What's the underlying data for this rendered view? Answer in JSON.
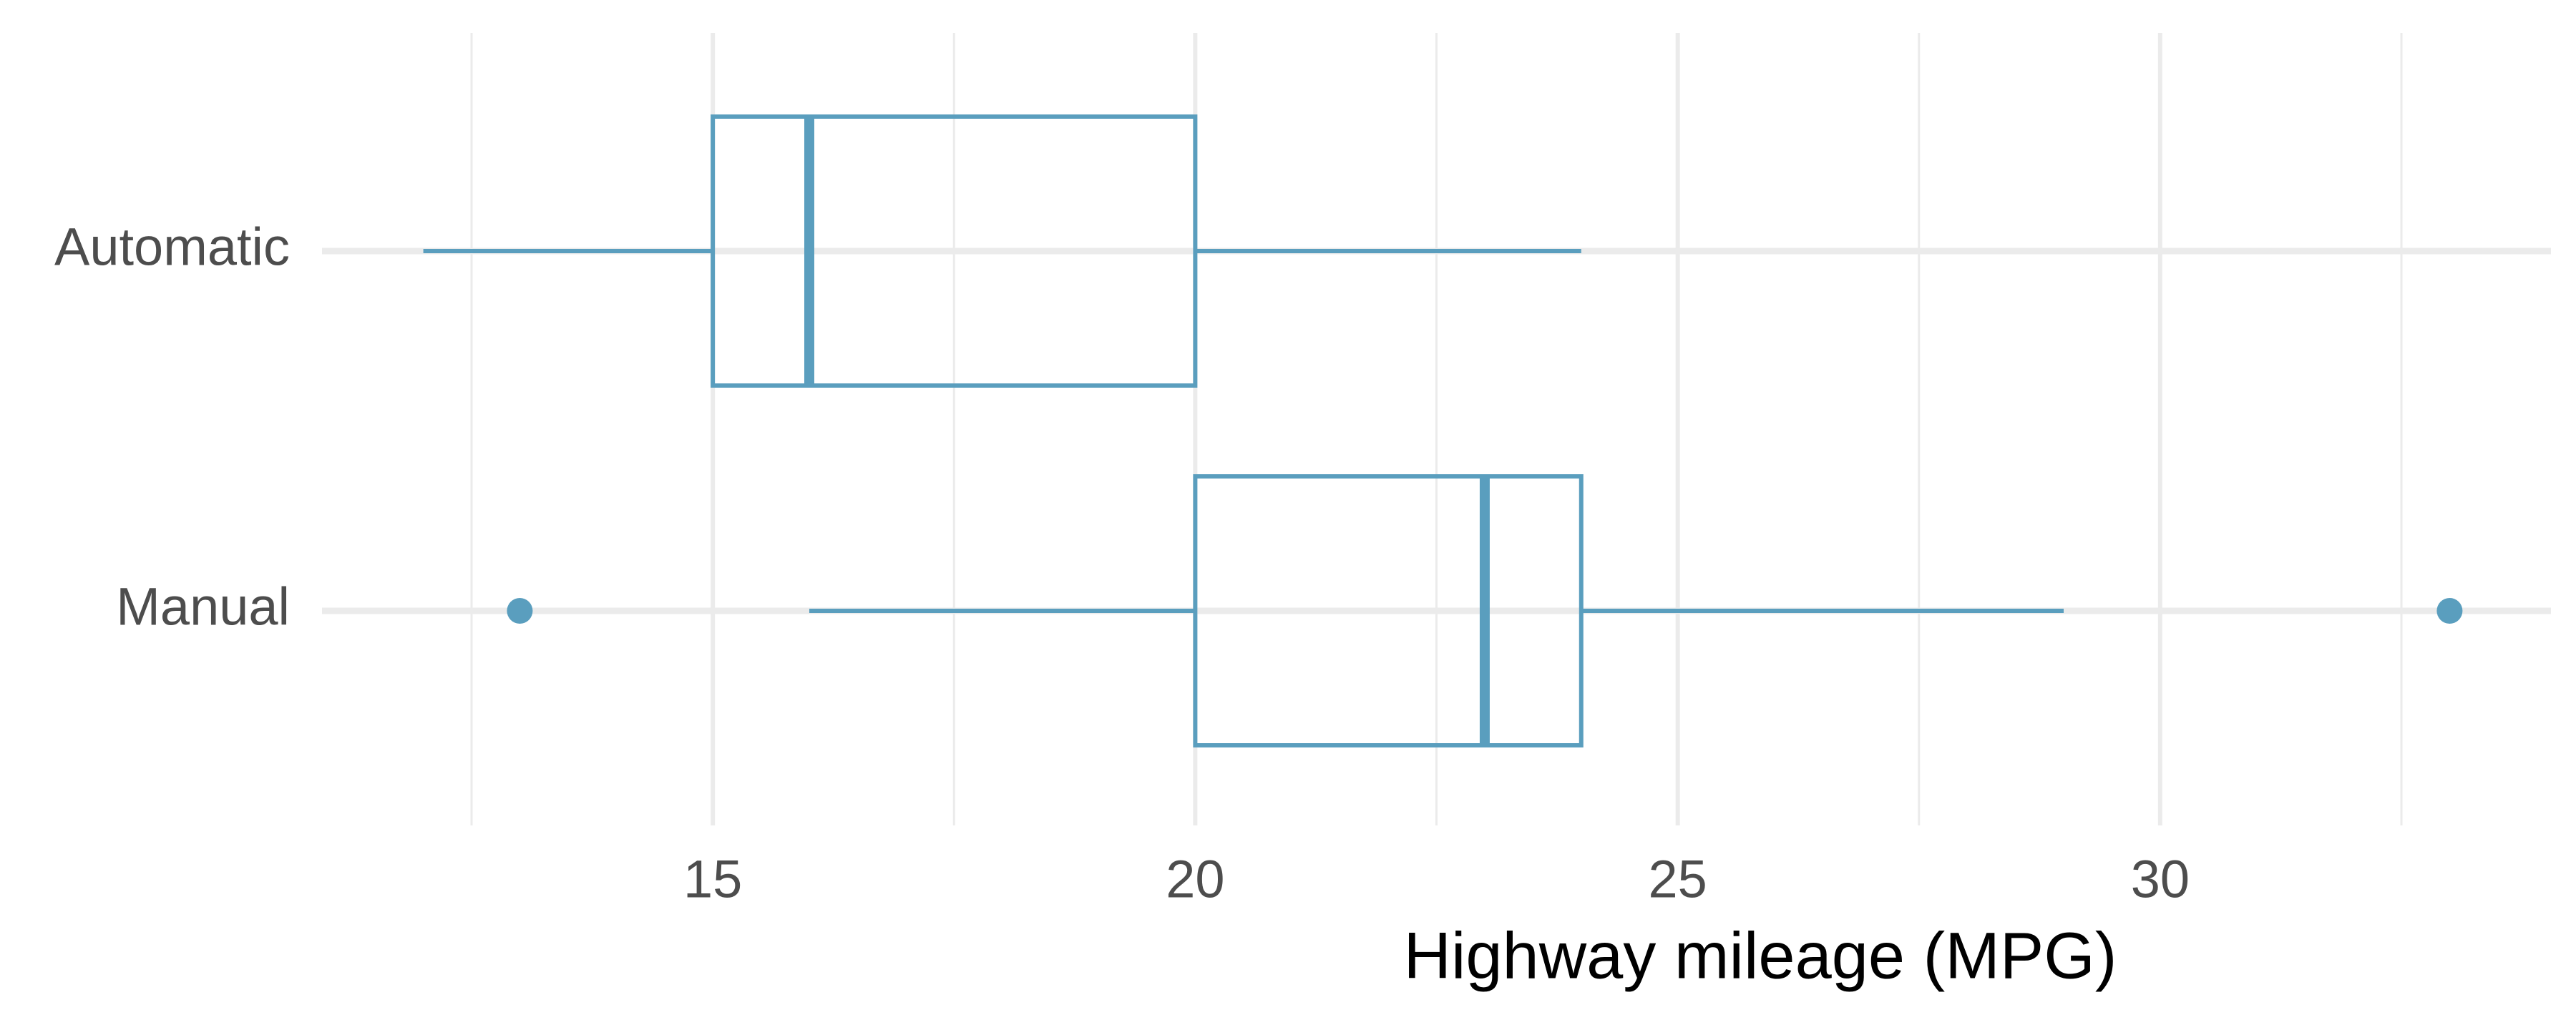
{
  "chart_data": {
    "type": "boxplot",
    "xlabel": "Highway mileage (MPG)",
    "categories": [
      "Automatic",
      "Manual"
    ],
    "boxes": [
      {
        "min": 12,
        "q1": 15,
        "median": 16,
        "q3": 20,
        "max": 24,
        "outliers": []
      },
      {
        "min": 16,
        "q1": 20,
        "median": 23,
        "q3": 24,
        "max": 29,
        "outliers": [
          13,
          33
        ]
      }
    ],
    "color": "#5a9ebe",
    "xlim": [
      10.95,
      34.05
    ],
    "xticks": [
      15,
      20,
      25,
      30
    ],
    "xminor": [
      12.5,
      17.5,
      22.5,
      27.5,
      32.5
    ],
    "grid": true
  }
}
